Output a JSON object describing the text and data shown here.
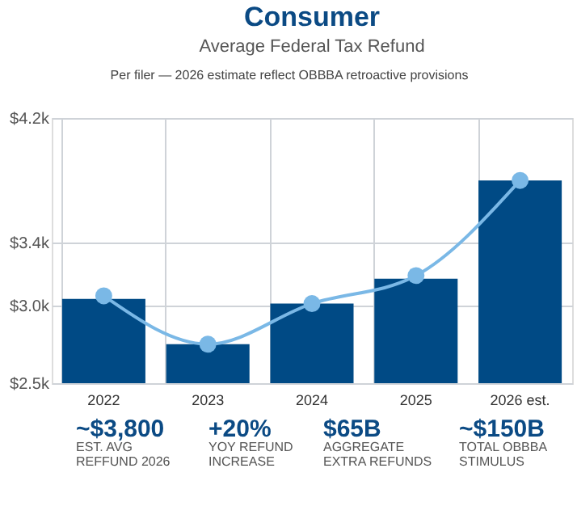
{
  "chart_data": {
    "type": "bar",
    "title": "Consumer",
    "subtitle": "Average Federal Tax Refund",
    "categories": [
      "2022",
      "2023",
      "2024",
      "2025",
      "2026 est."
    ],
    "series": [
      {
        "color": "#004a85",
        "values": [
          3040,
          2750,
          3010,
          3170,
          3800
        ]
      },
      {
        "type": "line",
        "color": "#7ab8e6",
        "marker": "circle",
        "line_style": "solid",
        "values": [
          3060,
          2750,
          3010,
          3190,
          3800
        ]
      }
    ],
    "ylim": [
      2500,
      4200
    ],
    "yticks": [
      {
        "value": 2500,
        "label": "$2.5k"
      },
      {
        "value": 3000,
        "label": "$3.0k"
      },
      {
        "value": 3400,
        "label": "$3.4k"
      },
      {
        "value": 4200,
        "label": "$4.2k"
      }
    ],
    "grid": true,
    "annotations": [
      "Per filer — 2026 estimate reflect OBBBA retroactive provisions",
      "~$3,800",
      "EST. AVG\nREFFUND 2026",
      "+20%",
      "YOY REFUND\nINCREASE",
      "$65B",
      "AGGREGATE\nEXTRA REFUNDS",
      "~$150B",
      "TOTAL OBBBA\nSTIMULUS"
    ]
  }
}
